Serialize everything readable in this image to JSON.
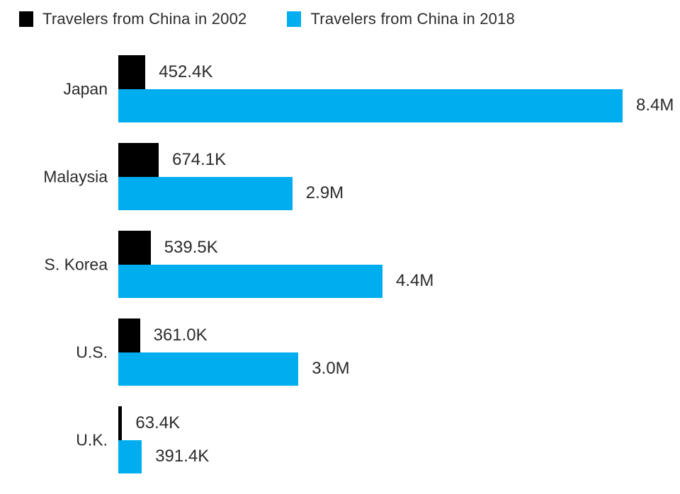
{
  "chart_data": {
    "type": "bar",
    "orientation": "horizontal",
    "title": "",
    "xlabel": "",
    "ylabel": "",
    "grid": false,
    "legend_position": "top-left",
    "xmax": 8400000,
    "categories": [
      "Japan",
      "Malaysia",
      "S. Korea",
      "U.S.",
      "U.K."
    ],
    "series": [
      {
        "name": "Travelers from China in 2002",
        "color": "#000000",
        "values": [
          452400,
          674100,
          539500,
          361000,
          63400
        ],
        "labels": [
          "452.4K",
          "674.1K",
          "539.5K",
          "361.0K",
          "63.4K"
        ]
      },
      {
        "name": "Travelers from China in 2018",
        "color": "#00AEF0",
        "values": [
          8400000,
          2900000,
          4400000,
          3000000,
          391400
        ],
        "labels": [
          "8.4M",
          "2.9M",
          "4.4M",
          "3.0M",
          "391.4K"
        ]
      }
    ]
  }
}
